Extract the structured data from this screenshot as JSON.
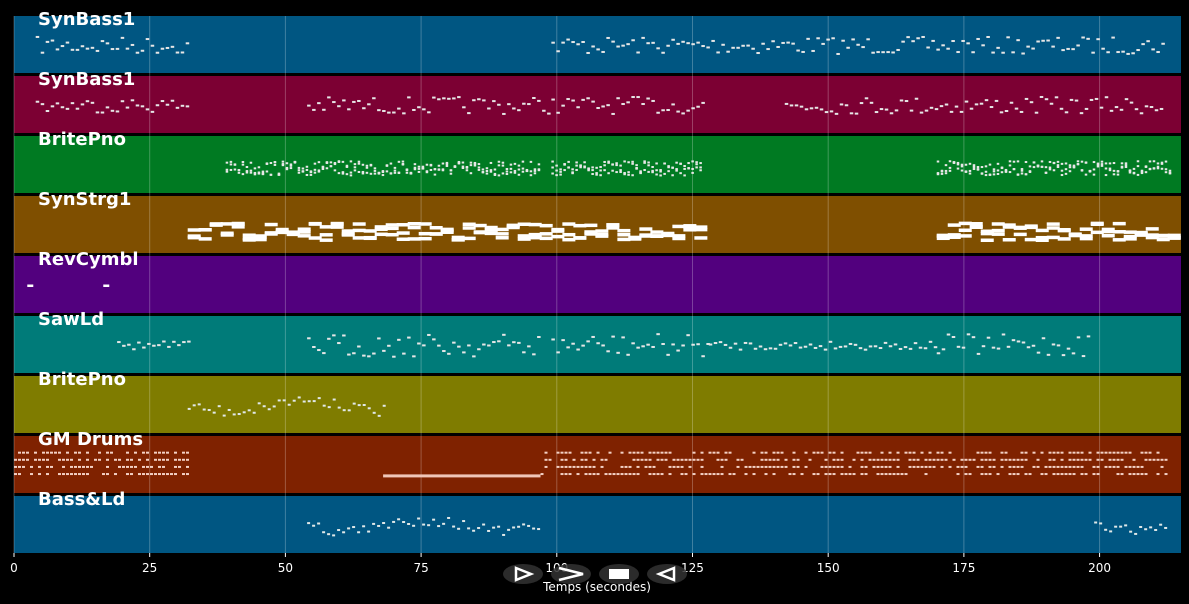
{
  "axis": {
    "label": "Temps (secondes)",
    "ticks": [
      0,
      25,
      50,
      75,
      100,
      125,
      150,
      175,
      200
    ],
    "xlim": [
      0,
      215
    ]
  },
  "tracks": [
    {
      "name": "SynBass1",
      "color": "#005682",
      "style": "dots",
      "segments": [
        [
          4,
          32,
          0.5,
          0.3
        ],
        [
          99,
          212,
          0.5,
          0.3
        ]
      ]
    },
    {
      "name": "SynBass1",
      "color": "#7c0033",
      "style": "dots",
      "segments": [
        [
          4,
          32,
          0.5,
          0.25
        ],
        [
          54,
          99,
          0.5,
          0.3
        ],
        [
          99,
          127,
          0.5,
          0.3
        ],
        [
          142,
          212,
          0.5,
          0.3
        ]
      ]
    },
    {
      "name": "BritePno",
      "color": "#007a22",
      "style": "dense",
      "segments": [
        [
          39,
          97,
          0.55,
          0.25
        ],
        [
          99,
          127,
          0.55,
          0.25
        ],
        [
          170,
          213,
          0.55,
          0.25
        ]
      ]
    },
    {
      "name": "SynStrg1",
      "color": "#7f4f00",
      "style": "blocks",
      "segments": [
        [
          32,
          97,
          0.6,
          0.3
        ],
        [
          99,
          127,
          0.6,
          0.3
        ],
        [
          170,
          213,
          0.6,
          0.3
        ]
      ]
    },
    {
      "name": "RevCymbl",
      "color": "#52007e",
      "style": "single",
      "segments": [
        [
          3,
          3,
          0.5,
          0
        ],
        [
          17,
          17,
          0.5,
          0
        ]
      ]
    },
    {
      "name": "SawLd",
      "color": "#007b79",
      "style": "dots",
      "segments": [
        [
          19,
          32,
          0.5,
          0.15
        ],
        [
          54,
          97,
          0.5,
          0.4
        ],
        [
          99,
          128,
          0.5,
          0.4
        ],
        [
          128,
          170,
          0.5,
          0.15
        ],
        [
          170,
          198,
          0.5,
          0.4
        ]
      ]
    },
    {
      "name": "BritePno",
      "color": "#7f7c00",
      "style": "melody",
      "segments": [
        [
          32,
          68,
          0.5,
          0.4
        ]
      ]
    },
    {
      "name": "GM Drums",
      "color": "#7f2200",
      "style": "drums",
      "segments": [
        [
          0,
          32,
          0.5,
          0.5
        ],
        [
          68,
          97,
          0.7,
          0.0
        ],
        [
          97,
          212,
          0.5,
          0.5
        ]
      ]
    },
    {
      "name": "Bass&Ld",
      "color": "#005682",
      "style": "melody",
      "segments": [
        [
          54,
          97,
          0.5,
          0.4
        ],
        [
          199,
          212,
          0.5,
          0.3
        ]
      ]
    }
  ],
  "controls": [
    {
      "name": "play-icon",
      "glyph": "play"
    },
    {
      "name": "forward-icon",
      "glyph": "forward"
    },
    {
      "name": "stop-icon",
      "glyph": "stop"
    },
    {
      "name": "back-icon",
      "glyph": "back"
    }
  ]
}
